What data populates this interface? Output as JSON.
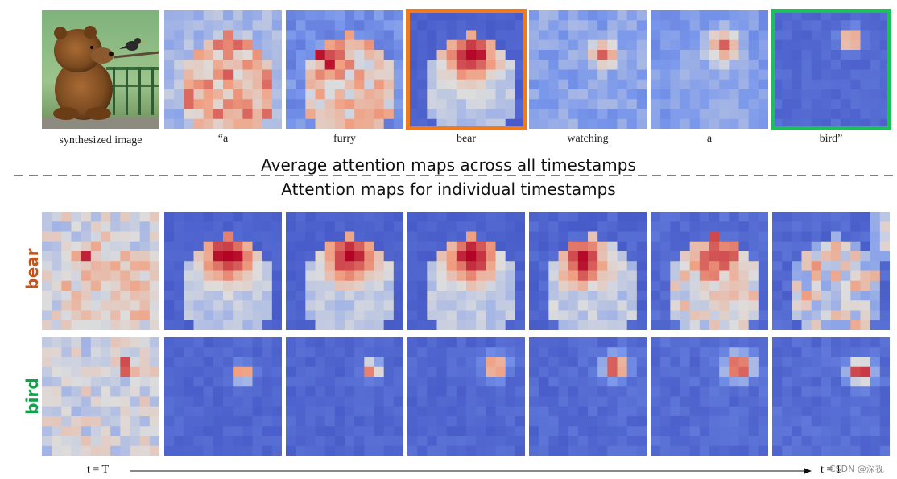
{
  "colors": {
    "bear_accent": "#c8531a",
    "bird_accent": "#12a04a",
    "bear_frame": "#f07a1e",
    "bird_frame": "#1fbd5b"
  },
  "top": {
    "photo_caption": "synthesized image",
    "tokens": [
      "“a",
      "furry",
      "bear",
      "watching",
      "a",
      "bird”"
    ]
  },
  "headings": {
    "average": "Average attention maps across all timestamps",
    "individual": "Attention maps for individual  timestamps"
  },
  "rows": {
    "bear": "bear",
    "bird": "bird"
  },
  "timeline": {
    "start": "t = T",
    "end": "t = 1"
  },
  "watermark": "CSDN @深视"
}
